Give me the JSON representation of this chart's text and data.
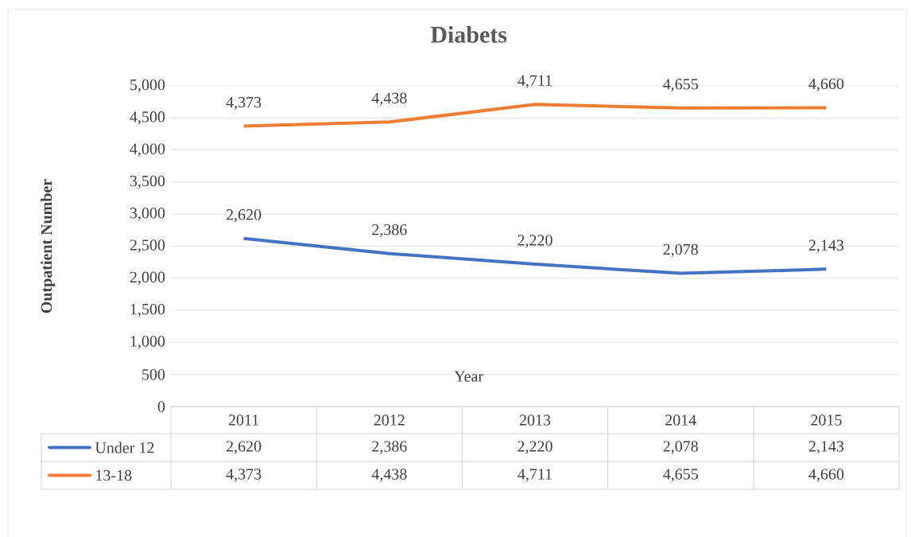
{
  "chart_data": {
    "type": "line",
    "title": "Diabets",
    "xlabel": "Year",
    "ylabel": "Outpatient Number",
    "categories": [
      "2011",
      "2012",
      "2013",
      "2014",
      "2015"
    ],
    "series": [
      {
        "name": "Under 12",
        "color": "#4472c4",
        "values": [
          2620,
          2386,
          2220,
          2078,
          2143
        ],
        "value_labels": [
          "2,620",
          "2,386",
          "2,220",
          "2,078",
          "2,143"
        ]
      },
      {
        "name": "13-18",
        "color": "#ed7d31",
        "values": [
          4373,
          4438,
          4711,
          4655,
          4660
        ],
        "value_labels": [
          "4,373",
          "4,438",
          "4,711",
          "4,655",
          "4,660"
        ]
      }
    ],
    "ylim": [
      0,
      5000
    ],
    "yticks": [
      {
        "value": 0,
        "label": "0"
      },
      {
        "value": 500,
        "label": "500"
      },
      {
        "value": 1000,
        "label": "1,000"
      },
      {
        "value": 1500,
        "label": "1,500"
      },
      {
        "value": 2000,
        "label": "2,000"
      },
      {
        "value": 2500,
        "label": "2,500"
      },
      {
        "value": 3000,
        "label": "3,000"
      },
      {
        "value": 3500,
        "label": "3,500"
      },
      {
        "value": 4000,
        "label": "4,000"
      },
      {
        "value": 4500,
        "label": "4,500"
      },
      {
        "value": 5000,
        "label": "5,000"
      }
    ],
    "grid": "y",
    "legend": "bottom",
    "line_style": "solid"
  }
}
